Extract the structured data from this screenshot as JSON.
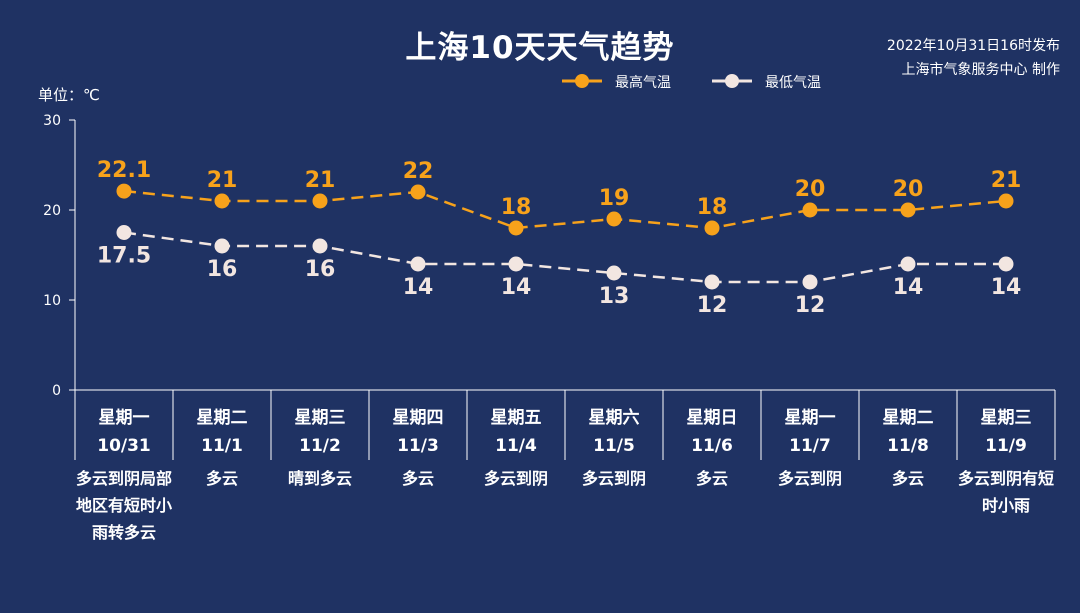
{
  "header": {
    "title": "上海10天天气趋势",
    "publish_line1": "2022年10月31日16时发布",
    "publish_line2": "上海市气象服务中心 制作",
    "unit": "单位：℃"
  },
  "legend": {
    "high_label": "最高气温",
    "low_label": "最低气温"
  },
  "colors": {
    "background": "#1f3263",
    "high": "#f7a21b",
    "low": "#f2e6e1",
    "text": "#ffffff"
  },
  "chart_data": {
    "type": "line",
    "ylim": [
      0,
      30
    ],
    "yticks": [
      "0",
      "10",
      "20",
      "30"
    ],
    "unit": "℃",
    "days": [
      {
        "weekday": "星期一",
        "date": "10/31",
        "weather": "多云到阴局部地区有短时小雨转多云"
      },
      {
        "weekday": "星期二",
        "date": "11/1",
        "weather": "多云"
      },
      {
        "weekday": "星期三",
        "date": "11/2",
        "weather": "晴到多云"
      },
      {
        "weekday": "星期四",
        "date": "11/3",
        "weather": "多云"
      },
      {
        "weekday": "星期五",
        "date": "11/4",
        "weather": "多云到阴"
      },
      {
        "weekday": "星期六",
        "date": "11/5",
        "weather": "多云到阴"
      },
      {
        "weekday": "星期日",
        "date": "11/6",
        "weather": "多云"
      },
      {
        "weekday": "星期一",
        "date": "11/7",
        "weather": "多云到阴"
      },
      {
        "weekday": "星期二",
        "date": "11/8",
        "weather": "多云"
      },
      {
        "weekday": "星期三",
        "date": "11/9",
        "weather": "多云到阴有短时小雨"
      }
    ],
    "series": [
      {
        "name": "最高气温",
        "values": [
          22.1,
          21,
          21,
          22,
          18,
          19,
          18,
          20,
          20,
          21
        ],
        "labels": [
          "22.1",
          "21",
          "21",
          "22",
          "18",
          "19",
          "18",
          "20",
          "20",
          "21"
        ]
      },
      {
        "name": "最低气温",
        "values": [
          17.5,
          16,
          16,
          14,
          14,
          13,
          12,
          12,
          14,
          14
        ],
        "labels": [
          "17.5",
          "16",
          "16",
          "14",
          "14",
          "13",
          "12",
          "12",
          "14",
          "14"
        ]
      }
    ]
  }
}
